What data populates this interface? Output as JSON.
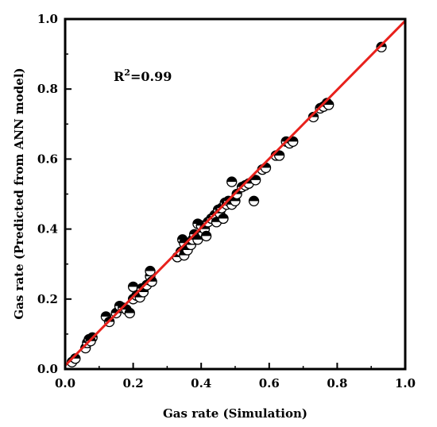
{
  "chart_data": {
    "type": "scatter",
    "xlabel": "Gas rate (Simulation)",
    "ylabel": "Gas rate (Predicted from ANN model)",
    "xlim": [
      0.0,
      1.0
    ],
    "ylim": [
      0.0,
      1.0
    ],
    "x_ticks": [
      "0.0",
      "0.2",
      "0.4",
      "0.6",
      "0.8",
      "1.0"
    ],
    "y_ticks": [
      "0.0",
      "0.2",
      "0.4",
      "0.6",
      "0.8",
      "1.0"
    ],
    "grid": false,
    "annotation": {
      "base": "R",
      "sup": "2",
      "rest": "=0.99"
    },
    "fit_line": {
      "x": [
        0.0,
        1.0
      ],
      "y": [
        0.01,
        0.995
      ],
      "color": "#e8211c"
    },
    "points": [
      {
        "x": 0.02,
        "y": 0.02
      },
      {
        "x": 0.03,
        "y": 0.03
      },
      {
        "x": 0.06,
        "y": 0.06
      },
      {
        "x": 0.065,
        "y": 0.075
      },
      {
        "x": 0.07,
        "y": 0.085
      },
      {
        "x": 0.08,
        "y": 0.09
      },
      {
        "x": 0.075,
        "y": 0.08
      },
      {
        "x": 0.12,
        "y": 0.15
      },
      {
        "x": 0.13,
        "y": 0.135
      },
      {
        "x": 0.15,
        "y": 0.16
      },
      {
        "x": 0.16,
        "y": 0.18
      },
      {
        "x": 0.17,
        "y": 0.175
      },
      {
        "x": 0.18,
        "y": 0.17
      },
      {
        "x": 0.19,
        "y": 0.16
      },
      {
        "x": 0.2,
        "y": 0.2
      },
      {
        "x": 0.2,
        "y": 0.235
      },
      {
        "x": 0.21,
        "y": 0.21
      },
      {
        "x": 0.22,
        "y": 0.205
      },
      {
        "x": 0.225,
        "y": 0.23
      },
      {
        "x": 0.23,
        "y": 0.22
      },
      {
        "x": 0.24,
        "y": 0.24
      },
      {
        "x": 0.25,
        "y": 0.265
      },
      {
        "x": 0.25,
        "y": 0.28
      },
      {
        "x": 0.255,
        "y": 0.25
      },
      {
        "x": 0.33,
        "y": 0.32
      },
      {
        "x": 0.34,
        "y": 0.335
      },
      {
        "x": 0.345,
        "y": 0.37
      },
      {
        "x": 0.35,
        "y": 0.36
      },
      {
        "x": 0.35,
        "y": 0.325
      },
      {
        "x": 0.36,
        "y": 0.34
      },
      {
        "x": 0.37,
        "y": 0.355
      },
      {
        "x": 0.375,
        "y": 0.37
      },
      {
        "x": 0.38,
        "y": 0.385
      },
      {
        "x": 0.39,
        "y": 0.37
      },
      {
        "x": 0.39,
        "y": 0.415
      },
      {
        "x": 0.4,
        "y": 0.41
      },
      {
        "x": 0.405,
        "y": 0.39
      },
      {
        "x": 0.41,
        "y": 0.4
      },
      {
        "x": 0.415,
        "y": 0.38
      },
      {
        "x": 0.42,
        "y": 0.42
      },
      {
        "x": 0.43,
        "y": 0.43
      },
      {
        "x": 0.44,
        "y": 0.44
      },
      {
        "x": 0.445,
        "y": 0.42
      },
      {
        "x": 0.45,
        "y": 0.455
      },
      {
        "x": 0.455,
        "y": 0.445
      },
      {
        "x": 0.46,
        "y": 0.46
      },
      {
        "x": 0.465,
        "y": 0.43
      },
      {
        "x": 0.47,
        "y": 0.475
      },
      {
        "x": 0.475,
        "y": 0.47
      },
      {
        "x": 0.48,
        "y": 0.48
      },
      {
        "x": 0.49,
        "y": 0.535
      },
      {
        "x": 0.49,
        "y": 0.47
      },
      {
        "x": 0.5,
        "y": 0.48
      },
      {
        "x": 0.505,
        "y": 0.5
      },
      {
        "x": 0.52,
        "y": 0.52
      },
      {
        "x": 0.53,
        "y": 0.525
      },
      {
        "x": 0.54,
        "y": 0.53
      },
      {
        "x": 0.555,
        "y": 0.48
      },
      {
        "x": 0.56,
        "y": 0.54
      },
      {
        "x": 0.58,
        "y": 0.57
      },
      {
        "x": 0.59,
        "y": 0.575
      },
      {
        "x": 0.62,
        "y": 0.61
      },
      {
        "x": 0.63,
        "y": 0.61
      },
      {
        "x": 0.65,
        "y": 0.65
      },
      {
        "x": 0.66,
        "y": 0.645
      },
      {
        "x": 0.67,
        "y": 0.65
      },
      {
        "x": 0.73,
        "y": 0.72
      },
      {
        "x": 0.75,
        "y": 0.745
      },
      {
        "x": 0.76,
        "y": 0.75
      },
      {
        "x": 0.77,
        "y": 0.76
      },
      {
        "x": 0.775,
        "y": 0.755
      },
      {
        "x": 0.93,
        "y": 0.92
      }
    ]
  }
}
